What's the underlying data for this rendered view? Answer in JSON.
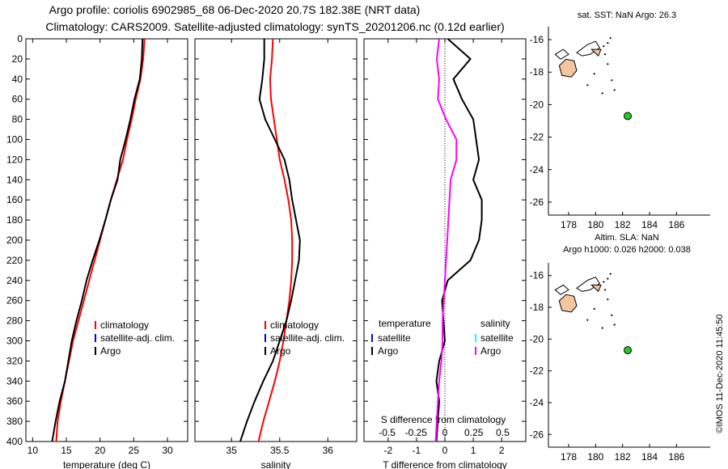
{
  "header": {
    "title_line1": "Argo profile: coriolis 6902985_68 06-Dec-2020 20.7S 182.38E (NRT data)",
    "title_line2": "Climatology: CARS2009. Satellite-adjusted climatology: synTS_20201206.nc (0.12d earlier)"
  },
  "map_top": {
    "title": "sat. SST: NaN Argo: 26.3",
    "xticks": [
      "178",
      "180",
      "182",
      "184",
      "186"
    ],
    "yticks": [
      "-16",
      "-18",
      "-20",
      "-22",
      "-24",
      "-26"
    ]
  },
  "map_bottom": {
    "title1": "Altim. SLA: NaN",
    "title2": "Argo h1000: 0.026 h2000: 0.038",
    "xticks": [
      "178",
      "180",
      "182",
      "184",
      "186"
    ],
    "yticks": [
      "-16",
      "-18",
      "-20",
      "-22",
      "-24",
      "-26"
    ]
  },
  "watermark": "©IMOS 11-Dec-2020 11:45:50",
  "legend_profiles": [
    "climatology",
    "satellite-adj. clim.",
    "Argo"
  ],
  "legend_diff": {
    "temp_title": "temperature",
    "sal_title": "salinity",
    "temp_items": [
      "satellite",
      "Argo"
    ],
    "sal_items": [
      "satellite",
      "Argo"
    ]
  },
  "colors": {
    "climatology": "#ff0000",
    "satellite_adj": "#0000ff",
    "argo": "#000000",
    "salinity_sat": "#00ffff",
    "salinity_argo": "#ff00ff",
    "land": "#f5c5a0",
    "float_marker": "#22cc22"
  },
  "chart_data": [
    {
      "type": "line",
      "name": "temperature",
      "xlabel": "temperature (deg C)",
      "xlim": [
        9,
        33
      ],
      "ylim": [
        400,
        0
      ],
      "xticks": [
        10,
        15,
        20,
        25,
        30
      ],
      "yticks": [
        0,
        20,
        40,
        60,
        80,
        100,
        120,
        140,
        160,
        180,
        200,
        220,
        240,
        260,
        280,
        300,
        320,
        340,
        360,
        380,
        400
      ],
      "series": [
        {
          "name": "climatology",
          "x": [
            26.6,
            26.4,
            26.0,
            25.3,
            24.7,
            24.0,
            23.4,
            22.5,
            21.6,
            20.8,
            20.0,
            19.2,
            18.4,
            17.6,
            16.8,
            16.0,
            15.4,
            14.8,
            14.2,
            13.7,
            13.5
          ],
          "y": [
            0,
            20,
            40,
            60,
            80,
            100,
            120,
            140,
            160,
            180,
            200,
            220,
            240,
            260,
            280,
            300,
            320,
            340,
            360,
            380,
            400
          ]
        },
        {
          "name": "Argo",
          "x": [
            26.3,
            26.2,
            25.9,
            25.1,
            24.5,
            23.8,
            23.0,
            22.6,
            21.6,
            20.8,
            19.9,
            18.9,
            18.0,
            17.3,
            16.5,
            15.8,
            15.3,
            14.8,
            14.0,
            13.4,
            12.9
          ],
          "y": [
            0,
            20,
            40,
            60,
            80,
            100,
            120,
            140,
            160,
            180,
            200,
            220,
            240,
            260,
            280,
            300,
            320,
            340,
            360,
            380,
            400
          ]
        }
      ]
    },
    {
      "type": "line",
      "name": "salinity",
      "xlabel": "salinity",
      "xticks": [
        35,
        35.5,
        36
      ],
      "xlim": [
        34.62,
        36.3
      ],
      "ylim": [
        400,
        0
      ],
      "series": [
        {
          "name": "climatology",
          "x": [
            35.43,
            35.42,
            35.4,
            35.41,
            35.44,
            35.47,
            35.5,
            35.55,
            35.59,
            35.62,
            35.63,
            35.63,
            35.62,
            35.6,
            35.57,
            35.54,
            35.5,
            35.45,
            35.39,
            35.33,
            35.28
          ],
          "y": [
            0,
            20,
            40,
            60,
            80,
            100,
            120,
            140,
            160,
            180,
            200,
            220,
            240,
            260,
            280,
            300,
            320,
            340,
            360,
            380,
            400
          ]
        },
        {
          "name": "Argo",
          "x": [
            35.34,
            35.34,
            35.32,
            35.29,
            35.35,
            35.45,
            35.55,
            35.6,
            35.63,
            35.67,
            35.71,
            35.7,
            35.66,
            35.62,
            35.57,
            35.5,
            35.43,
            35.33,
            35.24,
            35.16,
            35.09
          ],
          "y": [
            0,
            20,
            40,
            60,
            80,
            100,
            120,
            140,
            160,
            180,
            200,
            220,
            240,
            260,
            280,
            300,
            320,
            340,
            360,
            380,
            400
          ]
        }
      ]
    },
    {
      "type": "line",
      "name": "difference",
      "xlabel": "T difference from climatology",
      "xlabel_top": "S difference from climatology",
      "xticks": [
        -2,
        -1,
        0,
        1,
        2
      ],
      "xticks_top": [
        "-0.5",
        "-0.25",
        "0",
        "0.25",
        "0.5"
      ],
      "xlim": [
        -2.85,
        2.85
      ],
      "ylim": [
        400,
        0
      ],
      "series": [
        {
          "name": "T Argo",
          "x": [
            0.1,
            0.9,
            0.3,
            0.6,
            1.0,
            1.1,
            1.2,
            1.0,
            1.3,
            1.3,
            1.2,
            0.9,
            0.1,
            -0.1,
            -0.05,
            0.0,
            -0.2,
            -0.3,
            -0.2,
            -0.25,
            -0.3
          ],
          "y": [
            0,
            20,
            40,
            60,
            80,
            100,
            120,
            140,
            160,
            180,
            200,
            220,
            240,
            260,
            280,
            300,
            320,
            340,
            360,
            380,
            400
          ]
        },
        {
          "name": "S Argo",
          "x": [
            -0.05,
            -0.07,
            -0.05,
            -0.06,
            0.01,
            0.1,
            0.1,
            0.05,
            0.04,
            0.03,
            0.02,
            0.01,
            0.0,
            -0.01,
            -0.02,
            -0.02,
            -0.03,
            -0.05,
            -0.06,
            -0.07,
            -0.08
          ],
          "y": [
            0,
            20,
            40,
            60,
            80,
            100,
            120,
            140,
            160,
            180,
            200,
            220,
            240,
            260,
            280,
            300,
            320,
            340,
            360,
            380,
            400
          ]
        }
      ]
    },
    {
      "type": "scatter",
      "name": "location_maps",
      "xlim": [
        176.5,
        188.5
      ],
      "ylim": [
        -26.8,
        -15.2
      ],
      "points": [
        {
          "lon": 182.38,
          "lat": -20.7
        }
      ]
    }
  ]
}
